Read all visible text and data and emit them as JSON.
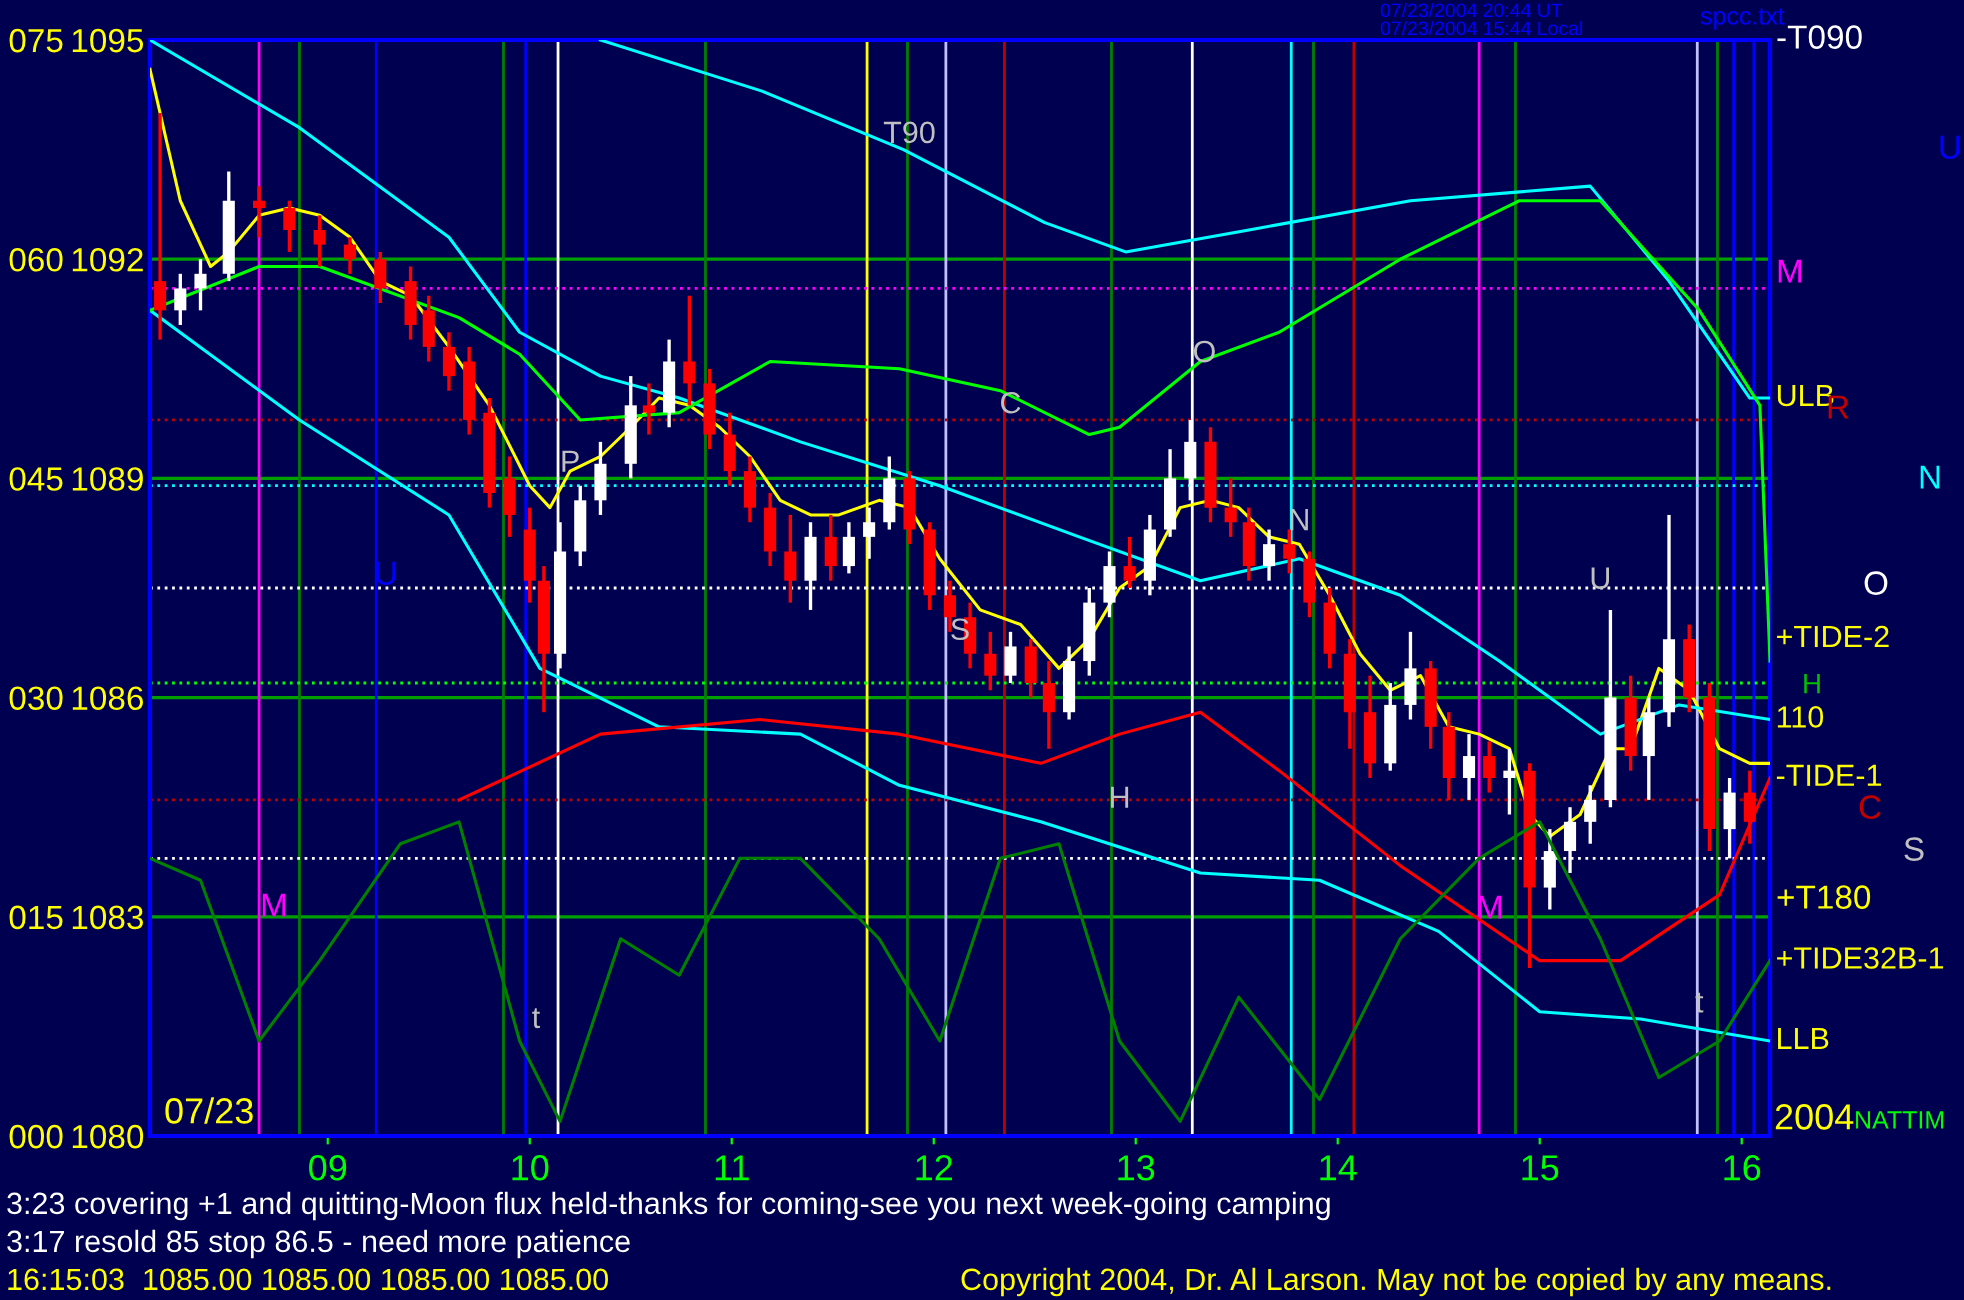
{
  "chart_data": {
    "type": "candlestick",
    "x": [
      8.17,
      8.27,
      8.37,
      8.51,
      8.66,
      8.81,
      8.96,
      9.11,
      9.26,
      9.41,
      9.5,
      9.6,
      9.7,
      9.8,
      9.9,
      10.0,
      10.07,
      10.15,
      10.25,
      10.35,
      10.5,
      10.59,
      10.69,
      10.79,
      10.89,
      10.99,
      11.09,
      11.19,
      11.29,
      11.39,
      11.49,
      11.58,
      11.68,
      11.78,
      11.88,
      11.98,
      12.08,
      12.18,
      12.28,
      12.38,
      12.48,
      12.57,
      12.67,
      12.77,
      12.87,
      12.97,
      13.07,
      13.17,
      13.27,
      13.37,
      13.47,
      13.56,
      13.66,
      13.76,
      13.86,
      13.96,
      14.06,
      14.16,
      14.26,
      14.36,
      14.46,
      14.55,
      14.65,
      14.75,
      14.85,
      14.95,
      15.05,
      15.15,
      15.25,
      15.35,
      15.45,
      15.54,
      15.64,
      15.74,
      15.84,
      15.94,
      16.04
    ],
    "ohlc": [
      [
        1091.7,
        1094.0,
        1090.9,
        1091.3
      ],
      [
        1091.3,
        1091.8,
        1091.1,
        1091.6
      ],
      [
        1091.6,
        1092.0,
        1091.3,
        1091.8
      ],
      [
        1091.8,
        1093.2,
        1091.7,
        1092.8
      ],
      [
        1092.8,
        1093.0,
        1092.3,
        1092.7
      ],
      [
        1092.7,
        1092.8,
        1092.1,
        1092.4
      ],
      [
        1092.4,
        1092.6,
        1091.9,
        1092.2
      ],
      [
        1092.2,
        1092.3,
        1091.8,
        1092.0
      ],
      [
        1092.0,
        1092.1,
        1091.4,
        1091.6
      ],
      [
        1091.7,
        1091.9,
        1090.9,
        1091.1
      ],
      [
        1091.3,
        1091.5,
        1090.6,
        1090.8
      ],
      [
        1090.8,
        1091.0,
        1090.2,
        1090.4
      ],
      [
        1090.6,
        1090.8,
        1089.6,
        1089.8
      ],
      [
        1089.9,
        1090.1,
        1088.6,
        1088.8
      ],
      [
        1089.0,
        1089.3,
        1088.2,
        1088.5
      ],
      [
        1088.3,
        1088.6,
        1087.3,
        1087.6
      ],
      [
        1087.6,
        1087.8,
        1085.8,
        1086.6
      ],
      [
        1086.6,
        1088.4,
        1086.4,
        1088.0
      ],
      [
        1088.0,
        1088.9,
        1087.8,
        1088.7
      ],
      [
        1088.7,
        1089.5,
        1088.5,
        1089.2
      ],
      [
        1089.2,
        1090.4,
        1089.0,
        1090.0
      ],
      [
        1090.0,
        1090.3,
        1089.6,
        1089.9
      ],
      [
        1089.9,
        1090.9,
        1089.7,
        1090.6
      ],
      [
        1090.6,
        1091.5,
        1090.0,
        1090.3
      ],
      [
        1090.3,
        1090.5,
        1089.4,
        1089.6
      ],
      [
        1089.6,
        1089.9,
        1088.9,
        1089.1
      ],
      [
        1089.1,
        1089.3,
        1088.4,
        1088.6
      ],
      [
        1088.6,
        1088.8,
        1087.8,
        1088.0
      ],
      [
        1088.0,
        1088.5,
        1087.3,
        1087.6
      ],
      [
        1087.6,
        1088.4,
        1087.2,
        1088.2
      ],
      [
        1088.2,
        1088.5,
        1087.6,
        1087.8
      ],
      [
        1087.8,
        1088.4,
        1087.7,
        1088.2
      ],
      [
        1088.2,
        1088.6,
        1087.9,
        1088.4
      ],
      [
        1088.4,
        1089.3,
        1088.3,
        1089.0
      ],
      [
        1089.0,
        1089.1,
        1088.1,
        1088.3
      ],
      [
        1088.3,
        1088.4,
        1087.2,
        1087.4
      ],
      [
        1087.4,
        1087.6,
        1086.9,
        1087.1
      ],
      [
        1087.1,
        1087.3,
        1086.4,
        1086.6
      ],
      [
        1086.6,
        1086.9,
        1086.1,
        1086.3
      ],
      [
        1086.3,
        1086.9,
        1086.2,
        1086.7
      ],
      [
        1086.7,
        1086.8,
        1086.0,
        1086.2
      ],
      [
        1086.2,
        1086.5,
        1085.3,
        1085.8
      ],
      [
        1085.8,
        1086.7,
        1085.7,
        1086.5
      ],
      [
        1086.5,
        1087.5,
        1086.3,
        1087.3
      ],
      [
        1087.3,
        1088.0,
        1087.1,
        1087.8
      ],
      [
        1087.8,
        1088.2,
        1087.5,
        1087.6
      ],
      [
        1087.6,
        1088.5,
        1087.4,
        1088.3
      ],
      [
        1088.3,
        1089.4,
        1088.2,
        1089.0
      ],
      [
        1089.0,
        1089.8,
        1088.7,
        1089.5
      ],
      [
        1089.5,
        1089.7,
        1088.4,
        1088.6
      ],
      [
        1088.6,
        1089.0,
        1088.2,
        1088.4
      ],
      [
        1088.4,
        1088.6,
        1087.6,
        1087.8
      ],
      [
        1087.8,
        1088.3,
        1087.6,
        1088.1
      ],
      [
        1088.1,
        1088.3,
        1087.7,
        1087.9
      ],
      [
        1087.9,
        1088.0,
        1087.1,
        1087.3
      ],
      [
        1087.3,
        1087.5,
        1086.4,
        1086.6
      ],
      [
        1086.6,
        1086.8,
        1085.3,
        1085.8
      ],
      [
        1085.8,
        1086.3,
        1084.9,
        1085.1
      ],
      [
        1085.1,
        1086.2,
        1085.0,
        1085.9
      ],
      [
        1085.9,
        1086.9,
        1085.7,
        1086.4
      ],
      [
        1086.4,
        1086.5,
        1085.3,
        1085.6
      ],
      [
        1085.6,
        1085.8,
        1084.6,
        1084.9
      ],
      [
        1084.9,
        1085.5,
        1084.6,
        1085.2
      ],
      [
        1085.2,
        1085.4,
        1084.7,
        1084.9
      ],
      [
        1084.9,
        1085.3,
        1084.4,
        1085.0
      ],
      [
        1085.0,
        1085.1,
        1082.3,
        1083.4
      ],
      [
        1083.4,
        1084.2,
        1083.1,
        1083.9
      ],
      [
        1083.9,
        1084.5,
        1083.6,
        1084.3
      ],
      [
        1084.3,
        1084.8,
        1084.0,
        1084.6
      ],
      [
        1084.6,
        1087.2,
        1084.5,
        1086.0
      ],
      [
        1086.0,
        1086.3,
        1085.0,
        1085.2
      ],
      [
        1085.2,
        1086.0,
        1084.6,
        1085.8
      ],
      [
        1085.8,
        1088.5,
        1085.6,
        1086.8
      ],
      [
        1086.8,
        1087.0,
        1085.8,
        1086.0
      ],
      [
        1086.0,
        1086.2,
        1083.9,
        1084.2
      ],
      [
        1084.2,
        1084.9,
        1083.8,
        1084.7
      ],
      [
        1084.7,
        1085.0,
        1084.0,
        1084.3
      ]
    ],
    "series": [
      {
        "type": "line",
        "color": "#ffff00",
        "x": [
          8.12,
          8.27,
          8.42,
          8.51,
          8.66,
          8.81,
          8.96,
          9.11,
          9.26,
          9.41,
          9.6,
          9.8,
          10.0,
          10.1,
          10.2,
          10.35,
          10.5,
          10.64,
          10.79,
          10.94,
          11.09,
          11.24,
          11.39,
          11.53,
          11.73,
          11.88,
          12.03,
          12.23,
          12.43,
          12.62,
          12.77,
          12.92,
          13.07,
          13.22,
          13.37,
          13.51,
          13.66,
          13.81,
          13.96,
          14.11,
          14.26,
          14.41,
          14.55,
          14.7,
          14.85,
          14.95,
          15.05,
          15.2,
          15.35,
          15.45,
          15.59,
          15.74,
          15.89,
          16.04,
          16.14
        ],
        "values": [
          1094.6,
          1092.8,
          1091.9,
          1092.1,
          1092.6,
          1092.7,
          1092.6,
          1092.3,
          1091.7,
          1091.5,
          1090.8,
          1090.0,
          1088.9,
          1088.6,
          1089.1,
          1089.3,
          1089.7,
          1090.1,
          1090.0,
          1089.7,
          1089.3,
          1088.7,
          1088.5,
          1088.5,
          1088.7,
          1088.6,
          1087.9,
          1087.2,
          1087.0,
          1086.4,
          1086.8,
          1087.5,
          1087.8,
          1088.6,
          1088.7,
          1088.6,
          1088.2,
          1088.1,
          1087.4,
          1086.6,
          1086.1,
          1086.3,
          1085.6,
          1085.5,
          1085.3,
          1084.4,
          1084.1,
          1084.4,
          1085.3,
          1085.3,
          1086.4,
          1086.1,
          1085.3,
          1085.1,
          1085.1
        ]
      },
      {
        "type": "line",
        "color": "#00ffff",
        "x": [
          10.35,
          11.15,
          11.85,
          12.55,
          12.95,
          13.56,
          14.36,
          15.25,
          15.64,
          16.04,
          16.14
        ],
        "values": [
          1095.0,
          1094.3,
          1093.5,
          1092.5,
          1092.1,
          1092.4,
          1092.8,
          1093.0,
          1091.7,
          1090.1,
          1090.1
        ]
      },
      {
        "type": "line",
        "color": "#00ffff",
        "x": [
          8.12,
          8.86,
          9.6,
          9.95,
          10.35,
          10.74,
          11.34,
          12.03,
          12.72,
          13.32,
          13.81,
          14.31,
          14.8,
          15.3,
          15.69,
          16.14
        ],
        "values": [
          1095.0,
          1093.8,
          1092.3,
          1091.0,
          1090.4,
          1090.1,
          1089.5,
          1088.9,
          1088.2,
          1087.6,
          1087.9,
          1087.4,
          1086.5,
          1085.5,
          1085.9,
          1085.7
        ]
      },
      {
        "type": "line",
        "color": "#00ffff",
        "x": [
          8.12,
          8.86,
          9.6,
          10.05,
          10.64,
          11.34,
          11.83,
          12.53,
          13.32,
          13.91,
          14.5,
          15.0,
          15.5,
          16.14
        ],
        "values": [
          1091.3,
          1089.8,
          1088.5,
          1086.4,
          1085.6,
          1085.5,
          1084.8,
          1084.3,
          1083.6,
          1083.5,
          1082.8,
          1081.7,
          1081.6,
          1081.3
        ]
      },
      {
        "type": "line",
        "color": "#00ff00",
        "x": [
          8.12,
          8.66,
          8.96,
          9.65,
          9.95,
          10.25,
          10.74,
          11.19,
          11.83,
          12.33,
          12.77,
          12.92,
          13.32,
          13.71,
          14.31,
          14.9,
          15.3,
          15.79,
          16.09,
          16.14
        ],
        "values": [
          1091.3,
          1091.9,
          1091.9,
          1091.2,
          1090.7,
          1089.8,
          1089.9,
          1090.6,
          1090.5,
          1090.2,
          1089.6,
          1089.7,
          1090.6,
          1091.0,
          1092.0,
          1092.8,
          1092.8,
          1091.3,
          1090.0,
          1086.5
        ]
      },
      {
        "type": "line",
        "color": "#ff0000",
        "x": [
          9.65,
          10.35,
          11.14,
          11.83,
          12.53,
          12.92,
          13.32,
          13.71,
          14.31,
          15.0,
          15.4,
          15.89,
          16.14
        ],
        "values": [
          1084.6,
          1085.5,
          1085.7,
          1085.5,
          1085.1,
          1085.5,
          1085.8,
          1085.0,
          1083.7,
          1082.4,
          1082.4,
          1083.3,
          1084.9
        ]
      },
      {
        "type": "line",
        "axis": "y2",
        "color": "#008000",
        "x": [
          8.12,
          8.37,
          8.66,
          8.96,
          9.36,
          9.65,
          9.95,
          10.15,
          10.45,
          10.74,
          11.04,
          11.34,
          11.73,
          12.03,
          12.33,
          12.62,
          12.92,
          13.22,
          13.51,
          13.91,
          14.31,
          14.7,
          15.0,
          15.3,
          15.59,
          15.89,
          16.14
        ],
        "values": [
          19,
          17.5,
          6.5,
          12,
          20,
          21.5,
          6.5,
          1,
          13.5,
          11,
          19,
          19,
          13.5,
          6.5,
          19,
          20,
          6.5,
          1,
          9.5,
          2.5,
          13.5,
          19,
          21.5,
          13.5,
          4,
          6.5,
          12
        ]
      }
    ],
    "xlim": [
      8.12,
      16.14
    ],
    "xticks": [
      {
        "value": 9,
        "label": "09"
      },
      10,
      11,
      12,
      13,
      14,
      15,
      16
    ],
    "ylim": [
      1080,
      1095
    ],
    "yticks": [
      1080,
      1083,
      1086,
      1089,
      1092,
      1095
    ],
    "y2lim": [
      0,
      75
    ],
    "y2ticks": [
      {
        "value": 0,
        "label": "000"
      },
      {
        "value": 15,
        "label": "015"
      },
      {
        "value": 30,
        "label": "030"
      },
      {
        "value": 45,
        "label": "045"
      },
      {
        "value": 60,
        "label": "060"
      },
      {
        "value": 75,
        "label": "075"
      }
    ],
    "grid": "y",
    "ref_lines": [
      {
        "axis": "x",
        "value": 8.66,
        "color": "#ff00ff"
      },
      {
        "axis": "x",
        "value": 14.7,
        "color": "#ff00ff"
      },
      {
        "axis": "x",
        "value": 9.24,
        "color": "#0000ff"
      },
      {
        "axis": "x",
        "value": 9.98,
        "color": "#0000ff"
      },
      {
        "axis": "x",
        "value": 15.96,
        "color": "#0000ff"
      },
      {
        "axis": "x",
        "value": 16.06,
        "color": "#0000ff"
      },
      {
        "axis": "x",
        "value": 8.86,
        "color": "#008000"
      },
      {
        "axis": "x",
        "value": 9.87,
        "color": "#008000"
      },
      {
        "axis": "x",
        "value": 10.87,
        "color": "#008000"
      },
      {
        "axis": "x",
        "value": 11.87,
        "color": "#008000"
      },
      {
        "axis": "x",
        "value": 12.88,
        "color": "#008000"
      },
      {
        "axis": "x",
        "value": 13.88,
        "color": "#008000"
      },
      {
        "axis": "x",
        "value": 14.88,
        "color": "#008000"
      },
      {
        "axis": "x",
        "value": 15.88,
        "color": "#008000"
      },
      {
        "axis": "x",
        "value": 10.14,
        "color": "#ffffff"
      },
      {
        "axis": "x",
        "value": 13.28,
        "color": "#ffffff"
      },
      {
        "axis": "x",
        "value": 12.06,
        "color": "#c0c0ff"
      },
      {
        "axis": "x",
        "value": 15.78,
        "color": "#c0c0ff"
      },
      {
        "axis": "x",
        "value": 11.67,
        "color": "#ffff00"
      },
      {
        "axis": "x",
        "value": 12.35,
        "color": "#c00000"
      },
      {
        "axis": "x",
        "value": 14.08,
        "color": "#c00000"
      },
      {
        "axis": "x",
        "value": 13.77,
        "color": "#00ffff"
      },
      {
        "axis": "y",
        "value": 1091.6,
        "color": "#ff00ff",
        "line_style": "dotted"
      },
      {
        "axis": "y",
        "value": 1089.8,
        "color": "#c00000",
        "line_style": "dotted"
      },
      {
        "axis": "y",
        "value": 1088.9,
        "color": "#00ffff",
        "line_style": "dotted"
      },
      {
        "axis": "y",
        "value": 1087.5,
        "color": "#ffffff",
        "line_style": "dotted"
      },
      {
        "axis": "y",
        "value": 1086.2,
        "color": "#00ff00",
        "line_style": "dotted"
      },
      {
        "axis": "y",
        "value": 1084.6,
        "color": "#c00000",
        "line_style": "dotted"
      },
      {
        "axis": "y",
        "value": 1083.8,
        "color": "#ffffff",
        "line_style": "dotted"
      }
    ],
    "annotations": [
      {
        "text": "T90",
        "x": 11.88,
        "y": 1093.7
      },
      {
        "text": "C",
        "x": 12.38,
        "y": 1090.0
      },
      {
        "text": "O",
        "x": 13.34,
        "y": 1090.7
      },
      {
        "text": "P",
        "x": 10.2,
        "y": 1089.2
      },
      {
        "text": "S",
        "x": 12.13,
        "y": 1086.9
      },
      {
        "text": "N",
        "x": 13.81,
        "y": 1088.4
      },
      {
        "text": "H",
        "x": 12.92,
        "y": 1084.6
      },
      {
        "text": "t",
        "x": 15.79,
        "y": 1081.8
      },
      {
        "text": "U",
        "x": 15.3,
        "y": 1087.6
      },
      {
        "text": "ULB",
        "x": 16.14,
        "y": 1090.1
      },
      {
        "text": "+TIDE-2",
        "x": 16.14,
        "y": 1086.8
      },
      {
        "text": "110",
        "x": 16.14,
        "y": 1085.7
      },
      {
        "text": "-TIDE-1",
        "x": 16.14,
        "y": 1084.9
      },
      {
        "text": "+TIDE32B-1",
        "x": 16.14,
        "y": 1082.4
      },
      {
        "text": "LLB",
        "x": 16.14,
        "y": 1081.3
      },
      "07/23/2004 20:44 UT",
      "07/23/2004 15:44 Local",
      "spcc.txt",
      "3:23 covering +1 and quitting-Moon flux held-thanks for coming-see you next week-going camping",
      "3:17 resold 85 stop 86.5 - need more patience",
      "16:15:03  1085.00 1085.00 1085.00 1085.00",
      "Copyright 2004, Dr. Al Larson. May not be copied by any means.",
      "07/23",
      "2004",
      "NATTIM",
      "U",
      "R",
      "N",
      "O",
      "H",
      "C",
      "S",
      "U",
      "M",
      "t",
      "M",
      "-T090",
      "M",
      "+T180"
    ]
  }
}
